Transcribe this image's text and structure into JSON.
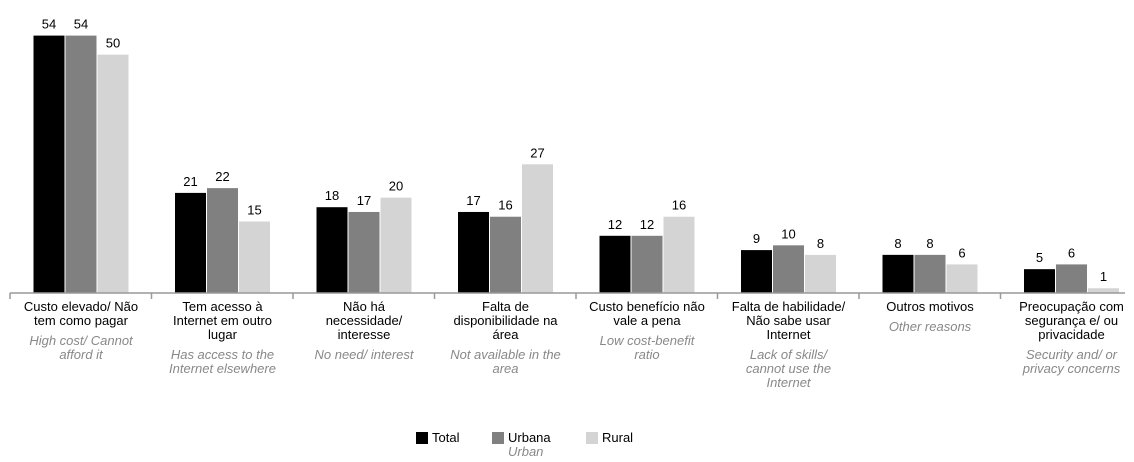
{
  "chart_data": {
    "type": "bar",
    "categories": [
      "Custo elevado/ Não tem como pagar",
      "Tem acesso à Internet em outro lugar",
      "Não há necessidade/ interesse",
      "Falta de disponibilidade na área",
      "Custo benefício não vale a pena",
      "Falta de habilidade/ Não sabe usar Internet",
      "Outros motivos",
      "Preocupação com segurança e/ ou privacidade"
    ],
    "category_translations": [
      "High cost/ Cannot afford it",
      "Has access to the Internet elsewhere",
      "No need/ interest",
      "Not available in the area",
      "Low cost-benefit ratio",
      "Lack of skills/ cannot use the Internet",
      "Other reasons",
      "Security and/ or privacy concerns"
    ],
    "series": [
      {
        "name": "Total",
        "color": "#000000",
        "values": [
          54,
          21,
          18,
          17,
          12,
          9,
          8,
          5
        ]
      },
      {
        "name": "Urbana",
        "translation": "Urban",
        "color": "#808080",
        "values": [
          54,
          22,
          17,
          16,
          12,
          10,
          8,
          6
        ]
      },
      {
        "name": "Rural",
        "color": "#d4d4d4",
        "values": [
          50,
          15,
          20,
          27,
          16,
          8,
          6,
          1
        ]
      }
    ],
    "ylim": [
      0,
      60
    ]
  }
}
